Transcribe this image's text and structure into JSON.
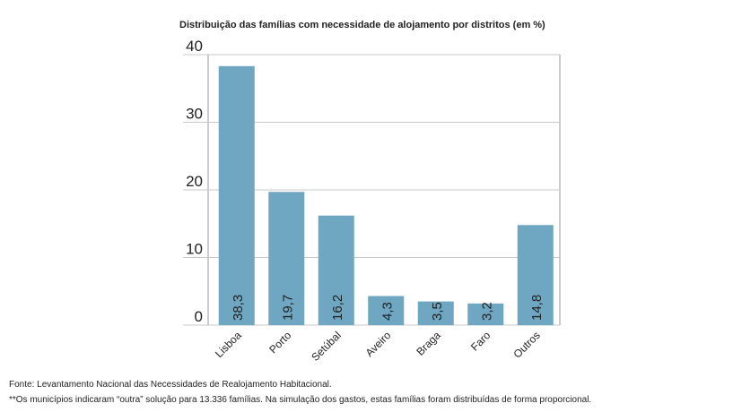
{
  "chart_data": {
    "type": "bar",
    "title": "Distribuição das famílias com necessidade de alojamento por distritos (em %)",
    "categories": [
      "Lisboa",
      "Porto",
      "Setúbal",
      "Aveiro",
      "Braga",
      "Faro",
      "Outros"
    ],
    "values": [
      38.3,
      19.7,
      16.2,
      4.3,
      3.5,
      3.2,
      14.8
    ],
    "value_labels": [
      "38,3",
      "19,7",
      "16,2",
      "4,3",
      "3,5",
      "3,2",
      "14,8"
    ],
    "color": "#6fa6c2",
    "ylim": [
      0,
      40
    ],
    "yticks": [
      0,
      10,
      20,
      30,
      40
    ],
    "grid": true,
    "source": "Fonte: Levantamento Nacional das Necessidades de Realojamento Habitacional.",
    "note": "**Os municípios indicaram “outra” solução para 13.336 famílias. Na simulação dos gastos, estas famílias foram distribuídas de forma proporcional."
  }
}
